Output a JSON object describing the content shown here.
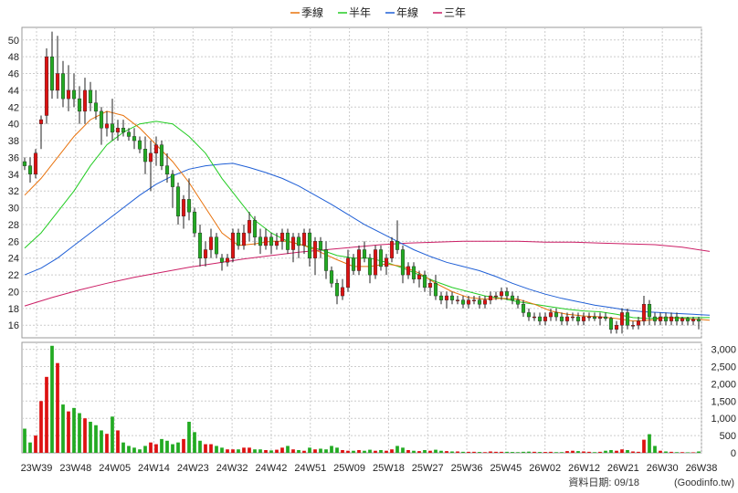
{
  "chart_data": {
    "type": "candlestick",
    "legend": [
      {
        "name": "季線",
        "color": "#e8720c"
      },
      {
        "name": "半年",
        "color": "#22cc22"
      },
      {
        "name": "年線",
        "color": "#1f5fd6"
      },
      {
        "name": "三年",
        "color": "#cc1f66"
      }
    ],
    "price_axis": {
      "ylim": [
        14.5,
        51.5
      ],
      "ticks": [
        "50",
        "48",
        "46",
        "44",
        "42",
        "40",
        "38",
        "36",
        "34",
        "32",
        "30",
        "28",
        "26",
        "24",
        "22",
        "20",
        "18",
        "16"
      ]
    },
    "volume_axis": {
      "ylim": [
        0,
        3200
      ],
      "ticks": [
        "3,000",
        "2,500",
        "2,000",
        "1,500",
        "1,000",
        "500",
        "0"
      ]
    },
    "x_labels": [
      "23W39",
      "23W48",
      "24W05",
      "24W14",
      "24W23",
      "24W32",
      "24W42",
      "24W51",
      "25W09",
      "25W18",
      "25W27",
      "25W36",
      "25W45",
      "26W02",
      "26W12",
      "26W21",
      "26W30",
      "26W38"
    ],
    "grid": true,
    "colors": {
      "up": "#dd1111",
      "down": "#22aa22",
      "volume_up": "#dd1111",
      "volume_down": "#22aa22"
    },
    "candles": [
      [
        35.5,
        36.0,
        34.5,
        35.0,
        700
      ],
      [
        35.0,
        36.0,
        33.0,
        34.0,
        300
      ],
      [
        34.0,
        37.0,
        33.5,
        36.5,
        500
      ],
      [
        40.0,
        41.0,
        37.0,
        40.5,
        1500
      ],
      [
        41.0,
        49.0,
        40.0,
        48.0,
        2200
      ],
      [
        48.0,
        51.0,
        43.0,
        44.0,
        3100
      ],
      [
        44.0,
        50.5,
        43.0,
        46.0,
        2600
      ],
      [
        46.0,
        47.5,
        42.0,
        43.0,
        1400
      ],
      [
        43.0,
        47.0,
        41.5,
        44.0,
        1200
      ],
      [
        44.0,
        46.0,
        42.0,
        43.0,
        1300
      ],
      [
        43.0,
        44.5,
        40.0,
        41.5,
        1150
      ],
      [
        41.5,
        45.5,
        40.0,
        44.0,
        1000
      ],
      [
        44.0,
        45.0,
        41.5,
        42.5,
        900
      ],
      [
        42.5,
        44.0,
        40.5,
        41.5,
        800
      ],
      [
        41.5,
        42.0,
        37.5,
        39.5,
        650
      ],
      [
        39.5,
        41.5,
        38.5,
        40.0,
        550
      ],
      [
        40.0,
        43.0,
        38.0,
        39.0,
        1050
      ],
      [
        39.0,
        40.5,
        38.0,
        39.5,
        650
      ],
      [
        39.5,
        40.5,
        38.5,
        39.0,
        300
      ],
      [
        39.0,
        39.5,
        38.0,
        38.5,
        200
      ],
      [
        38.5,
        39.5,
        37.0,
        38.0,
        150
      ],
      [
        38.0,
        38.5,
        36.5,
        37.0,
        100
      ],
      [
        37.0,
        38.5,
        34.0,
        35.5,
        200
      ],
      [
        35.5,
        38.0,
        32.0,
        36.5,
        300
      ],
      [
        36.5,
        38.5,
        35.0,
        37.5,
        250
      ],
      [
        37.5,
        38.0,
        34.5,
        35.0,
        400
      ],
      [
        35.0,
        36.5,
        33.0,
        34.0,
        350
      ],
      [
        34.0,
        34.5,
        30.0,
        32.5,
        250
      ],
      [
        32.5,
        33.0,
        28.0,
        29.0,
        300
      ],
      [
        29.0,
        31.5,
        27.5,
        31.0,
        400
      ],
      [
        31.0,
        33.5,
        28.5,
        29.5,
        900
      ],
      [
        29.5,
        30.0,
        26.5,
        27.0,
        600
      ],
      [
        27.0,
        28.0,
        23.0,
        24.0,
        350
      ],
      [
        24.0,
        26.0,
        23.0,
        25.0,
        250
      ],
      [
        25.0,
        27.5,
        24.0,
        26.5,
        250
      ],
      [
        26.5,
        27.0,
        24.0,
        24.5,
        200
      ],
      [
        24.0,
        24.5,
        22.5,
        23.5,
        150
      ],
      [
        23.5,
        24.5,
        23.0,
        24.0,
        100
      ],
      [
        24.0,
        27.5,
        23.5,
        27.0,
        100
      ],
      [
        27.0,
        27.5,
        25.0,
        25.5,
        100
      ],
      [
        25.5,
        28.0,
        25.0,
        27.0,
        150
      ],
      [
        27.0,
        29.5,
        26.0,
        28.5,
        150
      ],
      [
        28.5,
        29.0,
        25.5,
        26.5,
        100
      ],
      [
        26.5,
        27.5,
        24.5,
        25.5,
        100
      ],
      [
        25.5,
        27.5,
        25.0,
        26.5,
        80
      ],
      [
        26.5,
        27.0,
        24.5,
        25.5,
        70
      ],
      [
        25.5,
        27.0,
        25.0,
        26.0,
        90
      ],
      [
        26.0,
        27.5,
        25.0,
        27.0,
        150
      ],
      [
        27.0,
        27.5,
        24.5,
        25.0,
        200
      ],
      [
        25.0,
        27.0,
        23.5,
        26.5,
        100
      ],
      [
        26.5,
        27.0,
        24.0,
        25.5,
        80
      ],
      [
        25.5,
        27.5,
        24.5,
        27.0,
        60
      ],
      [
        27.0,
        27.5,
        23.0,
        24.0,
        150
      ],
      [
        24.0,
        26.5,
        22.0,
        26.0,
        100
      ],
      [
        26.0,
        26.5,
        24.0,
        25.0,
        120
      ],
      [
        25.0,
        26.0,
        21.5,
        22.5,
        100
      ],
      [
        22.5,
        23.0,
        20.5,
        21.0,
        200
      ],
      [
        21.0,
        21.5,
        18.5,
        19.5,
        150
      ],
      [
        19.5,
        21.5,
        19.0,
        20.5,
        80
      ],
      [
        20.5,
        25.0,
        20.0,
        24.0,
        60
      ],
      [
        24.0,
        24.5,
        22.0,
        22.5,
        60
      ],
      [
        22.5,
        25.5,
        22.0,
        25.0,
        80
      ],
      [
        25.0,
        26.0,
        23.5,
        24.0,
        60
      ],
      [
        24.0,
        24.5,
        21.0,
        22.0,
        90
      ],
      [
        22.0,
        25.5,
        21.5,
        25.0,
        60
      ],
      [
        25.0,
        25.5,
        22.5,
        23.0,
        80
      ],
      [
        23.0,
        24.5,
        22.0,
        24.0,
        60
      ],
      [
        24.0,
        26.5,
        23.5,
        26.0,
        100
      ],
      [
        26.0,
        28.5,
        24.5,
        25.0,
        200
      ],
      [
        25.0,
        25.5,
        21.0,
        22.0,
        150
      ],
      [
        22.0,
        23.5,
        21.5,
        23.0,
        80
      ],
      [
        23.0,
        23.5,
        21.0,
        21.5,
        60
      ],
      [
        21.5,
        22.5,
        20.5,
        22.0,
        50
      ],
      [
        22.0,
        22.5,
        20.0,
        20.5,
        80
      ],
      [
        20.5,
        21.5,
        19.5,
        21.0,
        60
      ],
      [
        21.0,
        22.0,
        19.0,
        19.5,
        90
      ],
      [
        19.5,
        20.0,
        18.5,
        19.0,
        60
      ],
      [
        19.0,
        20.0,
        18.0,
        19.5,
        50
      ],
      [
        19.5,
        20.0,
        18.5,
        19.0,
        40
      ],
      [
        19.0,
        19.5,
        18.5,
        19.0,
        40
      ],
      [
        19.0,
        19.5,
        18.0,
        18.5,
        30
      ],
      [
        18.5,
        19.5,
        18.0,
        19.0,
        30
      ],
      [
        19.0,
        19.5,
        18.5,
        19.0,
        30
      ],
      [
        19.0,
        19.5,
        18.0,
        18.5,
        25
      ],
      [
        18.5,
        19.5,
        18.0,
        19.0,
        20
      ],
      [
        19.0,
        20.0,
        18.5,
        19.5,
        40
      ],
      [
        19.5,
        20.0,
        19.0,
        19.5,
        30
      ],
      [
        19.5,
        20.5,
        19.0,
        20.0,
        30
      ],
      [
        20.0,
        20.5,
        19.0,
        19.5,
        30
      ],
      [
        19.5,
        20.0,
        18.5,
        19.0,
        25
      ],
      [
        19.0,
        19.5,
        18.0,
        18.5,
        20
      ],
      [
        18.5,
        19.0,
        17.0,
        17.5,
        30
      ],
      [
        17.5,
        18.0,
        16.5,
        17.0,
        35
      ],
      [
        17.0,
        17.5,
        16.5,
        17.0,
        30
      ],
      [
        17.0,
        17.5,
        16.0,
        16.5,
        25
      ],
      [
        16.5,
        17.5,
        16.0,
        17.0,
        25
      ],
      [
        17.0,
        18.0,
        16.5,
        17.5,
        30
      ],
      [
        17.5,
        18.0,
        16.5,
        17.0,
        20
      ],
      [
        17.0,
        17.5,
        16.0,
        16.5,
        20
      ],
      [
        16.5,
        17.5,
        16.0,
        17.0,
        50
      ],
      [
        17.0,
        17.5,
        16.5,
        17.0,
        60
      ],
      [
        17.0,
        17.5,
        16.0,
        16.5,
        50
      ],
      [
        16.5,
        17.5,
        16.0,
        17.0,
        40
      ],
      [
        17.0,
        17.5,
        16.5,
        17.0,
        30
      ],
      [
        17.0,
        17.5,
        16.5,
        16.8,
        20
      ],
      [
        16.8,
        17.5,
        16.0,
        17.0,
        30
      ],
      [
        17.0,
        17.5,
        16.5,
        16.8,
        60
      ],
      [
        16.8,
        17.0,
        15.0,
        15.5,
        80
      ],
      [
        15.5,
        16.5,
        15.0,
        16.0,
        60
      ],
      [
        16.0,
        18.0,
        15.0,
        17.5,
        100
      ],
      [
        17.5,
        18.0,
        15.5,
        16.0,
        80
      ],
      [
        16.0,
        16.5,
        15.5,
        16.0,
        40
      ],
      [
        16.0,
        17.0,
        15.5,
        16.5,
        30
      ],
      [
        16.5,
        19.5,
        16.0,
        18.5,
        380
      ],
      [
        18.5,
        19.0,
        16.0,
        17.0,
        540
      ],
      [
        17.0,
        17.5,
        16.0,
        16.5,
        200
      ],
      [
        16.5,
        17.5,
        16.0,
        17.0,
        60
      ],
      [
        17.0,
        17.5,
        16.0,
        16.5,
        40
      ],
      [
        16.5,
        17.5,
        16.0,
        17.0,
        30
      ],
      [
        17.0,
        17.5,
        16.0,
        16.5,
        20
      ],
      [
        16.5,
        17.0,
        16.0,
        16.8,
        20
      ],
      [
        16.8,
        17.0,
        16.0,
        16.5,
        15
      ],
      [
        16.5,
        17.0,
        16.0,
        16.7,
        15
      ],
      [
        16.7,
        17.0,
        15.5,
        16.5,
        40
      ]
    ],
    "ma_quarter": [
      [
        0,
        31.5
      ],
      [
        3,
        33.5
      ],
      [
        6,
        36.0
      ],
      [
        9,
        38.5
      ],
      [
        12,
        40.5
      ],
      [
        15,
        41.5
      ],
      [
        18,
        41.0
      ],
      [
        21,
        39.5
      ],
      [
        24,
        37.5
      ],
      [
        27,
        35.5
      ],
      [
        30,
        33.0
      ],
      [
        33,
        30.0
      ],
      [
        36,
        27.0
      ],
      [
        39,
        25.5
      ],
      [
        42,
        25.7
      ],
      [
        45,
        26.0
      ],
      [
        48,
        26.0
      ],
      [
        51,
        25.5
      ],
      [
        54,
        24.7
      ],
      [
        57,
        23.8
      ],
      [
        60,
        23.0
      ],
      [
        63,
        23.0
      ],
      [
        66,
        23.3
      ],
      [
        69,
        23.0
      ],
      [
        72,
        22.2
      ],
      [
        75,
        21.0
      ],
      [
        78,
        20.0
      ],
      [
        81,
        19.3
      ],
      [
        84,
        19.1
      ],
      [
        87,
        19.2
      ],
      [
        90,
        19.1
      ],
      [
        93,
        18.5
      ],
      [
        96,
        17.7
      ],
      [
        99,
        17.3
      ],
      [
        102,
        17.1
      ],
      [
        105,
        17.0
      ],
      [
        108,
        16.8
      ],
      [
        111,
        16.5
      ],
      [
        114,
        16.6
      ],
      [
        117,
        16.9
      ],
      [
        120,
        16.8
      ],
      [
        123,
        16.7
      ],
      [
        125,
        16.6
      ]
    ],
    "ma_half": [
      [
        0,
        25.2
      ],
      [
        3,
        27.0
      ],
      [
        6,
        29.5
      ],
      [
        9,
        32.0
      ],
      [
        12,
        35.0
      ],
      [
        15,
        37.5
      ],
      [
        18,
        39.0
      ],
      [
        21,
        40.0
      ],
      [
        24,
        40.3
      ],
      [
        27,
        40.0
      ],
      [
        30,
        38.5
      ],
      [
        33,
        36.5
      ],
      [
        36,
        33.5
      ],
      [
        39,
        31.0
      ],
      [
        42,
        28.5
      ],
      [
        45,
        27.0
      ],
      [
        48,
        26.0
      ],
      [
        51,
        25.5
      ],
      [
        54,
        25.0
      ],
      [
        57,
        24.3
      ],
      [
        60,
        24.0
      ],
      [
        63,
        24.0
      ],
      [
        66,
        23.5
      ],
      [
        69,
        22.8
      ],
      [
        72,
        22.0
      ],
      [
        75,
        21.2
      ],
      [
        78,
        20.5
      ],
      [
        81,
        20.0
      ],
      [
        84,
        19.5
      ],
      [
        87,
        19.2
      ],
      [
        90,
        18.8
      ],
      [
        93,
        18.5
      ],
      [
        96,
        18.2
      ],
      [
        99,
        17.9
      ],
      [
        102,
        17.7
      ],
      [
        105,
        17.6
      ],
      [
        108,
        17.3
      ],
      [
        111,
        16.9
      ],
      [
        114,
        16.8
      ],
      [
        117,
        16.9
      ],
      [
        120,
        16.9
      ],
      [
        123,
        16.9
      ],
      [
        125,
        16.9
      ]
    ],
    "ma_year": [
      [
        0,
        22.0
      ],
      [
        3,
        22.8
      ],
      [
        6,
        24.0
      ],
      [
        9,
        25.5
      ],
      [
        12,
        27.0
      ],
      [
        15,
        28.5
      ],
      [
        18,
        30.0
      ],
      [
        21,
        31.5
      ],
      [
        24,
        32.8
      ],
      [
        27,
        33.8
      ],
      [
        30,
        34.6
      ],
      [
        33,
        35.0
      ],
      [
        36,
        35.2
      ],
      [
        38,
        35.3
      ],
      [
        41,
        34.8
      ],
      [
        44,
        34.2
      ],
      [
        47,
        33.5
      ],
      [
        50,
        32.6
      ],
      [
        53,
        31.5
      ],
      [
        56,
        30.4
      ],
      [
        59,
        29.2
      ],
      [
        62,
        28.0
      ],
      [
        65,
        27.0
      ],
      [
        68,
        26.0
      ],
      [
        71,
        25.0
      ],
      [
        74,
        24.2
      ],
      [
        77,
        23.5
      ],
      [
        80,
        23.0
      ],
      [
        83,
        22.5
      ],
      [
        86,
        21.8
      ],
      [
        89,
        21.0
      ],
      [
        92,
        20.3
      ],
      [
        95,
        19.7
      ],
      [
        98,
        19.2
      ],
      [
        101,
        18.8
      ],
      [
        104,
        18.4
      ],
      [
        107,
        18.1
      ],
      [
        110,
        17.8
      ],
      [
        113,
        17.6
      ],
      [
        116,
        17.5
      ],
      [
        119,
        17.4
      ],
      [
        122,
        17.3
      ],
      [
        125,
        17.2
      ]
    ],
    "ma_3year": [
      [
        0,
        18.3
      ],
      [
        5,
        19.3
      ],
      [
        10,
        20.2
      ],
      [
        15,
        21.0
      ],
      [
        20,
        21.7
      ],
      [
        25,
        22.3
      ],
      [
        30,
        22.9
      ],
      [
        35,
        23.4
      ],
      [
        40,
        23.9
      ],
      [
        45,
        24.3
      ],
      [
        50,
        24.7
      ],
      [
        55,
        25.0
      ],
      [
        60,
        25.3
      ],
      [
        65,
        25.6
      ],
      [
        70,
        25.8
      ],
      [
        75,
        25.9
      ],
      [
        80,
        26.0
      ],
      [
        85,
        26.0
      ],
      [
        90,
        26.0
      ],
      [
        95,
        25.9
      ],
      [
        100,
        25.9
      ],
      [
        105,
        25.8
      ],
      [
        110,
        25.7
      ],
      [
        115,
        25.6
      ],
      [
        120,
        25.3
      ],
      [
        125,
        24.8
      ]
    ]
  },
  "footer": {
    "data_date": "資料日期: 09/18",
    "source": "(Goodinfo.tw)"
  }
}
